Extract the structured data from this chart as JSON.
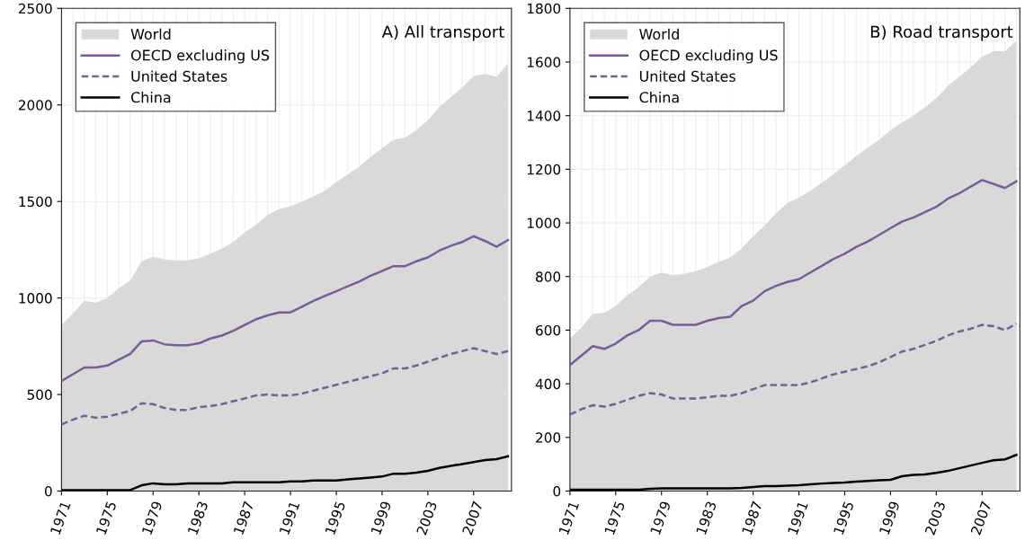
{
  "chart_data": [
    {
      "type": "line",
      "title": "A) All transport",
      "xlim": [
        1971,
        2010.3
      ],
      "xticks": [
        1971,
        1975,
        1979,
        1983,
        1987,
        1991,
        1995,
        1999,
        2003,
        2007
      ],
      "ylim": [
        0,
        2500
      ],
      "yticks": [
        0,
        500,
        1000,
        1500,
        2000,
        2500
      ],
      "grid": true,
      "legend": "top left",
      "x": [
        1971,
        1972,
        1973,
        1974,
        1975,
        1976,
        1977,
        1978,
        1979,
        1980,
        1981,
        1982,
        1983,
        1984,
        1985,
        1986,
        1987,
        1988,
        1989,
        1990,
        1991,
        1992,
        1993,
        1994,
        1995,
        1996,
        1997,
        1998,
        1999,
        2000,
        2001,
        2002,
        2003,
        2004,
        2005,
        2006,
        2007,
        2008,
        2009,
        2010
      ],
      "series": [
        {
          "name": "World",
          "type": "area",
          "color": "#d9d9d9",
          "values": [
            860,
            920,
            985,
            975,
            1000,
            1050,
            1090,
            1190,
            1215,
            1200,
            1195,
            1195,
            1205,
            1230,
            1255,
            1290,
            1340,
            1380,
            1430,
            1460,
            1475,
            1500,
            1525,
            1555,
            1600,
            1640,
            1680,
            1730,
            1775,
            1820,
            1830,
            1870,
            1920,
            1990,
            2040,
            2090,
            2150,
            2160,
            2145,
            2215
          ]
        },
        {
          "name": "OECD excluding US",
          "color": "#7a5c9a",
          "line_style": "solid",
          "values": [
            570,
            605,
            640,
            640,
            650,
            680,
            710,
            775,
            780,
            760,
            755,
            755,
            765,
            790,
            805,
            830,
            860,
            890,
            910,
            925,
            925,
            955,
            985,
            1010,
            1035,
            1060,
            1085,
            1115,
            1140,
            1165,
            1165,
            1190,
            1210,
            1245,
            1270,
            1290,
            1320,
            1295,
            1265,
            1300
          ]
        },
        {
          "name": "United States",
          "color": "#7a5c9a",
          "line_style": "dashed",
          "values": [
            345,
            370,
            390,
            380,
            385,
            400,
            415,
            455,
            450,
            430,
            420,
            420,
            435,
            440,
            450,
            465,
            480,
            495,
            500,
            495,
            495,
            505,
            520,
            535,
            550,
            565,
            580,
            595,
            610,
            635,
            635,
            650,
            670,
            690,
            710,
            725,
            740,
            725,
            710,
            725
          ]
        },
        {
          "name": "China",
          "color": "#000000",
          "line_style": "solid",
          "values": [
            5,
            5,
            5,
            5,
            5,
            5,
            5,
            30,
            40,
            35,
            35,
            40,
            40,
            40,
            40,
            45,
            45,
            45,
            45,
            45,
            50,
            50,
            55,
            55,
            55,
            60,
            65,
            70,
            75,
            90,
            90,
            95,
            105,
            120,
            130,
            140,
            150,
            160,
            165,
            180
          ]
        }
      ]
    },
    {
      "type": "line",
      "title": "B) Road transport",
      "xlim": [
        1971,
        2010.3
      ],
      "xticks": [
        1971,
        1975,
        1979,
        1983,
        1987,
        1991,
        1995,
        1999,
        2003,
        2007
      ],
      "ylim": [
        0,
        1800
      ],
      "yticks": [
        0,
        200,
        400,
        600,
        800,
        1000,
        1200,
        1400,
        1600,
        1800
      ],
      "grid": true,
      "legend": "top left",
      "x": [
        1971,
        1972,
        1973,
        1974,
        1975,
        1976,
        1977,
        1978,
        1979,
        1980,
        1981,
        1982,
        1983,
        1984,
        1985,
        1986,
        1987,
        1988,
        1989,
        1990,
        1991,
        1992,
        1993,
        1994,
        1995,
        1996,
        1997,
        1998,
        1999,
        2000,
        2001,
        2002,
        2003,
        2004,
        2005,
        2006,
        2007,
        2008,
        2009,
        2010
      ],
      "series": [
        {
          "name": "World",
          "type": "area",
          "color": "#d9d9d9",
          "values": [
            570,
            610,
            660,
            665,
            690,
            730,
            760,
            800,
            815,
            805,
            810,
            820,
            835,
            855,
            870,
            905,
            950,
            990,
            1035,
            1075,
            1095,
            1120,
            1150,
            1180,
            1215,
            1250,
            1280,
            1310,
            1345,
            1375,
            1400,
            1430,
            1465,
            1510,
            1545,
            1580,
            1620,
            1640,
            1640,
            1680
          ]
        },
        {
          "name": "OECD excluding US",
          "color": "#7a5c9a",
          "line_style": "solid",
          "values": [
            470,
            505,
            540,
            530,
            550,
            580,
            600,
            635,
            635,
            620,
            620,
            620,
            635,
            645,
            650,
            690,
            710,
            745,
            765,
            780,
            790,
            815,
            840,
            865,
            885,
            910,
            930,
            955,
            980,
            1005,
            1020,
            1040,
            1060,
            1090,
            1110,
            1135,
            1160,
            1145,
            1130,
            1155
          ]
        },
        {
          "name": "United States",
          "color": "#7a5c9a",
          "line_style": "dashed",
          "values": [
            285,
            305,
            320,
            315,
            325,
            340,
            355,
            365,
            360,
            345,
            345,
            345,
            350,
            355,
            355,
            365,
            380,
            395,
            395,
            395,
            395,
            405,
            420,
            435,
            445,
            455,
            465,
            480,
            500,
            520,
            530,
            545,
            560,
            580,
            595,
            605,
            620,
            615,
            600,
            625
          ]
        },
        {
          "name": "China",
          "color": "#000000",
          "line_style": "solid",
          "values": [
            5,
            5,
            5,
            5,
            5,
            5,
            5,
            8,
            10,
            10,
            10,
            10,
            10,
            10,
            10,
            12,
            15,
            18,
            18,
            20,
            22,
            25,
            28,
            30,
            32,
            35,
            38,
            40,
            42,
            55,
            60,
            62,
            68,
            75,
            85,
            95,
            105,
            115,
            118,
            135
          ]
        }
      ]
    }
  ]
}
